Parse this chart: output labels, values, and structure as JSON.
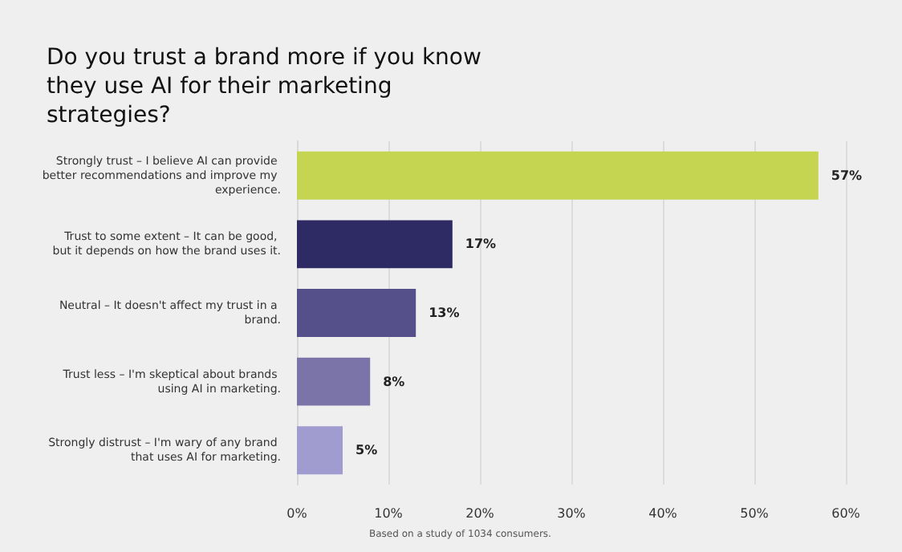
{
  "chart_data": {
    "type": "bar",
    "orientation": "horizontal",
    "title": "Do you trust a brand more if you know they use AI for their marketing strategies?",
    "categories": [
      "Strongly trust – I believe AI can provide better recommendations and improve my experience.",
      "Trust to some extent – It can be good, but it depends on how the brand uses it.",
      "Neutral – It doesn't affect my trust in a brand.",
      "Trust less – I'm skeptical about brands using AI in marketing.",
      "Strongly distrust – I'm wary of any brand that uses AI for marketing."
    ],
    "values": [
      57,
      17,
      13,
      8,
      5
    ],
    "colors": [
      "#c5d552",
      "#2e2a63",
      "#55508a",
      "#7a74a8",
      "#a09ccf"
    ],
    "value_labels": [
      "57%",
      "17%",
      "13%",
      "8%",
      "5%"
    ],
    "xlim": [
      0,
      60
    ],
    "xticks": [
      {
        "value": 0,
        "label": "0%"
      },
      {
        "value": 10,
        "label": "10%"
      },
      {
        "value": 20,
        "label": "20%"
      },
      {
        "value": 30,
        "label": "30%"
      },
      {
        "value": 40,
        "label": "40%"
      },
      {
        "value": 50,
        "label": "50%"
      },
      {
        "value": 60,
        "label": "60%"
      }
    ],
    "grid": "x",
    "annotations": [
      "Based on a study of 1034 consumers."
    ]
  }
}
